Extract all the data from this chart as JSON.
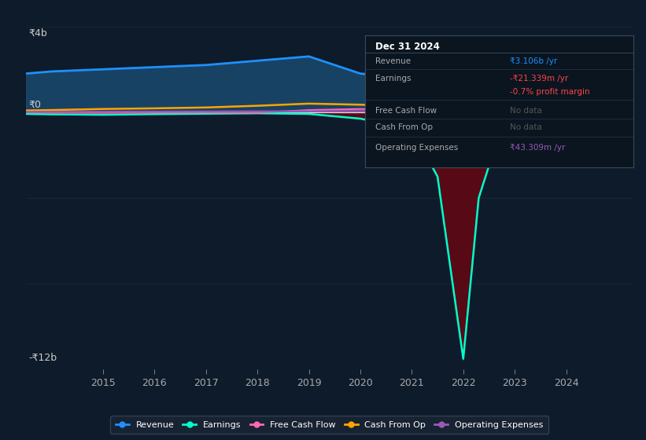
{
  "background_color": "#0d1b2a",
  "chart_bg_color": "#0d1b2a",
  "y_label_top": "₹4b",
  "y_label_zero": "₹0",
  "y_label_bottom": "-₹12b",
  "x_ticks": [
    2015,
    2016,
    2017,
    2018,
    2019,
    2020,
    2021,
    2022,
    2023,
    2024
  ],
  "ylim": [
    -12000,
    4000
  ],
  "xlim": [
    2013.5,
    2025.3
  ],
  "years": [
    2013.5,
    2014,
    2015,
    2016,
    2017,
    2018,
    2019,
    2020,
    2021,
    2021.5,
    2022.0,
    2022.3,
    2022.7,
    2023,
    2024,
    2025.1
  ],
  "revenue": [
    1800,
    1900,
    2000,
    2100,
    2200,
    2400,
    2600,
    1800,
    1600,
    1700,
    2200,
    2500,
    2700,
    2700,
    2900,
    3106
  ],
  "earnings": [
    -80,
    -100,
    -120,
    -90,
    -70,
    -50,
    -80,
    -300,
    -800,
    -3000,
    -11500,
    -4000,
    -1000,
    -400,
    -150,
    -21
  ],
  "free_cf": [
    -10,
    -20,
    -30,
    -20,
    -15,
    -25,
    100,
    150,
    100,
    50,
    -50,
    -100,
    -80,
    -50,
    -30,
    -20
  ],
  "cash_op": [
    80,
    100,
    150,
    180,
    220,
    300,
    400,
    350,
    250,
    200,
    150,
    100,
    120,
    150,
    120,
    -30
  ],
  "op_exp": [
    10,
    15,
    20,
    25,
    30,
    35,
    40,
    42,
    43,
    43,
    43,
    43,
    43,
    43,
    43,
    43
  ],
  "revenue_color": "#1e90ff",
  "earnings_color": "#00ffcc",
  "free_cash_flow_color": "#ff69b4",
  "cash_from_op_color": "#ffa500",
  "operating_expenses_color": "#9b59b6",
  "fill_revenue_color": "#1a4a6e",
  "fill_earnings_neg_color": "#5c0a14",
  "legend_bg": "#1a2535",
  "legend_border": "#3a4a5a",
  "info_box_bg": "#0a1520",
  "info_box_border": "#3a4a5a",
  "revenue_info": "₹3.106b /yr",
  "earnings_info": "-₹21.339m /yr",
  "margin_info": "-0.7% profit margin",
  "opex_info": "₹43.309m /yr"
}
